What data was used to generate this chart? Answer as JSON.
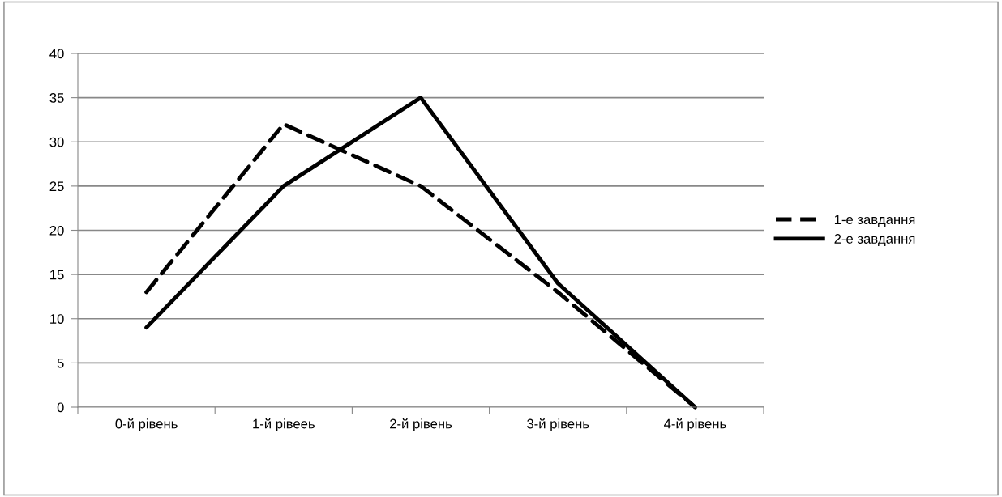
{
  "chart_data": {
    "type": "line",
    "categories": [
      "0-й рівень",
      "1-й рівееь",
      "2-й рівень",
      "3-й рівень",
      "4-й рівень"
    ],
    "series": [
      {
        "name": "1-е завдання",
        "color": "#000000",
        "line_style": "dashed",
        "values": [
          13,
          32,
          25,
          13,
          0
        ]
      },
      {
        "name": "2-е завдання",
        "color": "#000000",
        "line_style": "solid",
        "values": [
          9,
          25,
          35,
          14,
          0
        ]
      }
    ],
    "ylim": [
      0,
      40
    ],
    "yticks": [
      0,
      5,
      10,
      15,
      20,
      25,
      30,
      35,
      40
    ],
    "grid": "y",
    "legend": "right",
    "marker": "none"
  }
}
